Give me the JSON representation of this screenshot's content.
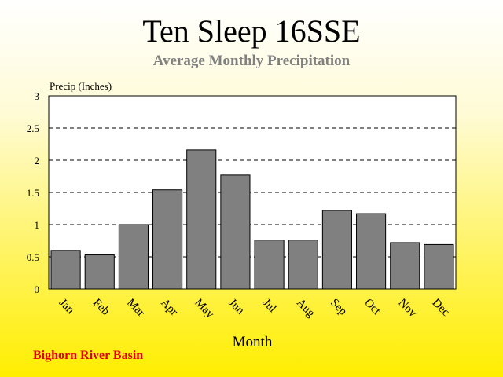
{
  "title": "Ten Sleep 16SSE",
  "subtitle": "Average Monthly Precipitation",
  "footer": "Bighorn River Basin",
  "colors": {
    "bar_fill": "#808080",
    "footer_text": "#e00000",
    "subtitle_text": "#808080"
  },
  "chart_data": {
    "type": "bar",
    "title": "Ten Sleep 16SSE",
    "subtitle": "Average Monthly Precipitation",
    "xlabel": "Month",
    "ylabel": "Precip (Inches)",
    "ylim": [
      0,
      3
    ],
    "yticks": [
      "0",
      "0.5",
      "1",
      "1.5",
      "2",
      "2.5",
      "3"
    ],
    "grid": "horizontal dashed",
    "categories": [
      "Jan",
      "Feb",
      "Mar",
      "Apr",
      "May",
      "Jun",
      "Jul",
      "Aug",
      "Sep",
      "Oct",
      "Nov",
      "Dec"
    ],
    "values": [
      0.6,
      0.53,
      1.0,
      1.54,
      2.16,
      1.77,
      0.76,
      0.76,
      1.22,
      1.17,
      0.72,
      0.69
    ]
  }
}
